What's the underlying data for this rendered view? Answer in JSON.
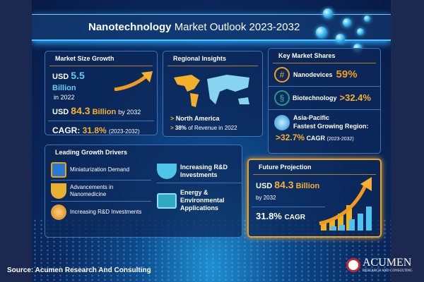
{
  "title": {
    "bold": "Nanotechnology",
    "rest": "Market Outlook 2023-2032"
  },
  "market_size": {
    "heading": "Market Size Growth",
    "usd1": "USD",
    "value1": "5.5",
    "unit1": "Billion",
    "year1": "in 2022",
    "usd2": "USD",
    "value2": "84.3",
    "unit2": "Billion",
    "year2": "by 2032",
    "cagr_label": "CAGR:",
    "cagr_value": "31.8%",
    "cagr_period": "(2023-2032)"
  },
  "regional": {
    "heading": "Regional Insights",
    "region": "North America",
    "share": "38%",
    "share_text": "of Revenue in 2022"
  },
  "key_shares": {
    "heading": "Key Market Shares",
    "items": [
      {
        "label": "Nanodevices",
        "value": "59%"
      },
      {
        "label": "Biotechnology",
        "value": ">32.4%"
      }
    ],
    "apac_line1": "Asia-Pacific",
    "apac_line2": "Fastest Growing Region:",
    "apac_value": ">32.7%",
    "apac_cagr": "CAGR",
    "apac_period": "(2023-2032)"
  },
  "drivers": {
    "heading": "Leading Growth Drivers",
    "items": [
      "Miniaturization Demand",
      "Advancements in Nanomedicine",
      "Increasing R&D Investments",
      "Increasing R&D Investments",
      "Energy & Environmental Applications"
    ]
  },
  "future": {
    "heading": "Future Projection",
    "usd": "USD",
    "value": "84.3",
    "unit": "Billion",
    "year": "by 2032",
    "cagr_value": "31.8%",
    "cagr_label": "CAGR"
  },
  "source": "Source: Acumen Research And Consulting",
  "logo": {
    "name": "ACUMEN",
    "tagline": "RESEARCH AND CONSULTING"
  }
}
